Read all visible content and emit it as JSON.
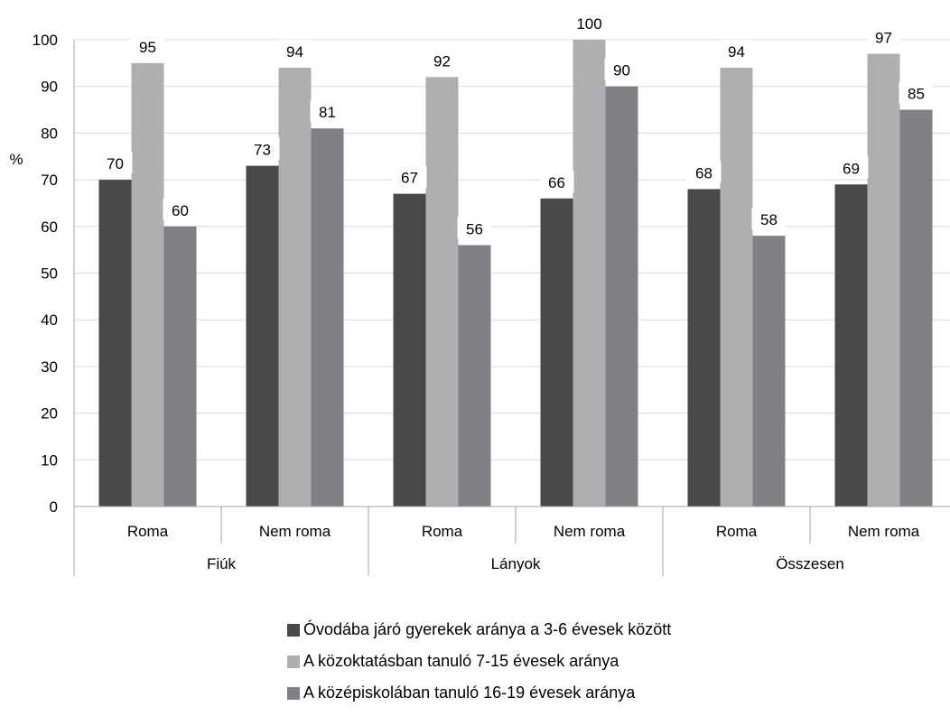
{
  "chart_data": {
    "type": "bar",
    "ylabel": "%",
    "ylim": [
      0,
      100
    ],
    "yticks": [
      0,
      10,
      20,
      30,
      40,
      50,
      60,
      70,
      80,
      90,
      100
    ],
    "grid": true,
    "groups": [
      {
        "label": "Fiúk",
        "subcategories": [
          "Roma",
          "Nem roma"
        ]
      },
      {
        "label": "Lányok",
        "subcategories": [
          "Roma",
          "Nem roma"
        ]
      },
      {
        "label": "Összesen",
        "subcategories": [
          "Roma",
          "Nem roma"
        ]
      }
    ],
    "categories": [
      "Roma",
      "Nem roma",
      "Roma",
      "Nem roma",
      "Roma",
      "Nem roma"
    ],
    "series": [
      {
        "name": "Óvodába járó gyerekek aránya a 3-6 évesek között",
        "color": "#48494b",
        "values": [
          70,
          73,
          67,
          66,
          68,
          69
        ]
      },
      {
        "name": "A közoktatásban tanuló 7-15 évesek aránya",
        "color": "#aeafb1",
        "values": [
          95,
          94,
          92,
          100,
          94,
          97
        ]
      },
      {
        "name": "A középiskolában tanuló 16-19 évesek aránya",
        "color": "#808184",
        "values": [
          60,
          81,
          56,
          90,
          58,
          85
        ]
      }
    ],
    "legend_position": "bottom"
  }
}
